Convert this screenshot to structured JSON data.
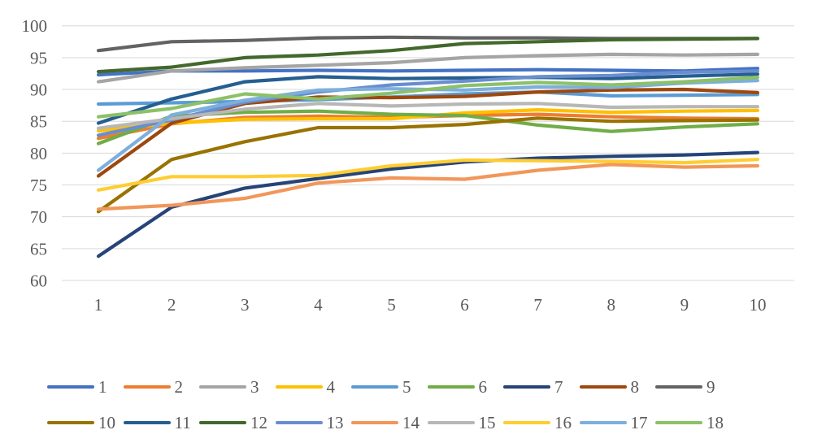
{
  "chart_data": {
    "type": "line",
    "x_tick_labels": [
      "1",
      "2",
      "3",
      "4",
      "5",
      "6",
      "7",
      "8",
      "9",
      "10"
    ],
    "y_tick_labels": [
      "100",
      "95",
      "90",
      "85",
      "80",
      "75",
      "70",
      "65",
      "60"
    ],
    "y_ticks": [
      100,
      95,
      90,
      85,
      80,
      75,
      70,
      65,
      60
    ],
    "ylim": [
      60,
      100
    ],
    "xlabel": "",
    "ylabel": "",
    "title": "",
    "grid": "horizontal",
    "legend_position": "bottom",
    "series": [
      {
        "name": "1",
        "color": "#4472C4",
        "values": [
          92.3,
          92.9,
          92.9,
          93.0,
          92.9,
          93.0,
          93.1,
          93.0,
          92.9,
          93.3
        ]
      },
      {
        "name": "2",
        "color": "#ED7D31",
        "values": [
          82.3,
          84.6,
          85.6,
          85.8,
          85.6,
          85.9,
          86.1,
          85.7,
          85.5,
          85.4
        ]
      },
      {
        "name": "3",
        "color": "#A5A5A5",
        "values": [
          91.2,
          92.9,
          93.4,
          93.8,
          94.2,
          95.0,
          95.3,
          95.5,
          95.4,
          95.5
        ]
      },
      {
        "name": "4",
        "color": "#FFC000",
        "values": [
          83.5,
          84.7,
          85.3,
          85.4,
          85.4,
          86.3,
          86.8,
          86.4,
          86.6,
          86.7
        ]
      },
      {
        "name": "5",
        "color": "#5B9BD5",
        "values": [
          87.7,
          87.9,
          88.1,
          88.4,
          88.8,
          89.3,
          89.6,
          89.0,
          89.1,
          89.2
        ]
      },
      {
        "name": "6",
        "color": "#70AD47",
        "values": [
          81.5,
          85.8,
          86.4,
          86.6,
          86.1,
          85.9,
          84.4,
          83.4,
          84.1,
          84.6
        ]
      },
      {
        "name": "7",
        "color": "#264478",
        "values": [
          63.8,
          71.5,
          74.5,
          76.0,
          77.5,
          78.6,
          79.2,
          79.5,
          79.7,
          80.1
        ]
      },
      {
        "name": "8",
        "color": "#9E480E",
        "values": [
          76.4,
          84.7,
          87.8,
          88.8,
          88.7,
          88.9,
          89.6,
          89.9,
          90.0,
          89.5
        ]
      },
      {
        "name": "9",
        "color": "#636363",
        "values": [
          96.1,
          97.5,
          97.7,
          98.1,
          98.2,
          98.1,
          98.1,
          98.0,
          98.0,
          98.0
        ]
      },
      {
        "name": "10",
        "color": "#997300",
        "values": [
          70.8,
          79.0,
          81.8,
          84.0,
          84.0,
          84.5,
          85.5,
          85.0,
          85.1,
          85.2
        ]
      },
      {
        "name": "11",
        "color": "#255E91",
        "values": [
          84.7,
          88.5,
          91.2,
          92.0,
          91.7,
          91.8,
          91.9,
          91.7,
          92.1,
          92.4
        ]
      },
      {
        "name": "12",
        "color": "#43682B",
        "values": [
          92.8,
          93.5,
          95.0,
          95.4,
          96.1,
          97.2,
          97.5,
          97.8,
          97.9,
          98.0
        ]
      },
      {
        "name": "13",
        "color": "#698ED0",
        "values": [
          82.8,
          85.2,
          88.0,
          89.6,
          90.7,
          91.3,
          92.0,
          92.2,
          92.7,
          92.9
        ]
      },
      {
        "name": "14",
        "color": "#F1975A",
        "values": [
          71.2,
          71.8,
          72.9,
          75.3,
          76.1,
          75.9,
          77.3,
          78.2,
          77.8,
          78.0
        ]
      },
      {
        "name": "15",
        "color": "#B7B7B7",
        "values": [
          83.9,
          85.4,
          86.9,
          87.8,
          87.4,
          87.7,
          87.8,
          87.2,
          87.3,
          87.3
        ]
      },
      {
        "name": "16",
        "color": "#FFCD33",
        "values": [
          74.2,
          76.3,
          76.3,
          76.5,
          78.0,
          78.9,
          78.8,
          78.7,
          78.5,
          79.0
        ]
      },
      {
        "name": "17",
        "color": "#7CAFDD",
        "values": [
          77.3,
          86.0,
          88.3,
          89.9,
          90.1,
          89.9,
          90.4,
          90.3,
          91.0,
          91.4
        ]
      },
      {
        "name": "18",
        "color": "#8CC168",
        "values": [
          85.7,
          87.0,
          89.3,
          88.5,
          89.4,
          90.6,
          91.1,
          90.7,
          91.2,
          91.9
        ]
      }
    ]
  },
  "style_colors": {
    "gridline": "#D9D9D9",
    "tick_text": "#595959",
    "background": "#FFFFFF"
  },
  "layout_meta": {
    "legend_rows": 2,
    "legend_items_per_row": 9
  }
}
